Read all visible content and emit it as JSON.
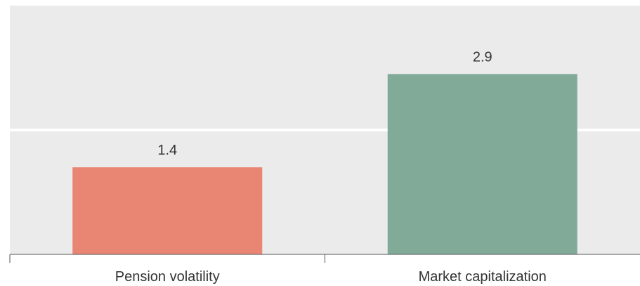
{
  "chart_data": {
    "type": "bar",
    "categories": [
      "Pension volatility",
      "Market capitalization"
    ],
    "values": [
      1.4,
      2.9
    ],
    "data_labels": [
      "1.4",
      "2.9"
    ],
    "colors": [
      "#e98673",
      "#81ab98"
    ],
    "background_color": "#ebebeb",
    "grid_color": "#ffffff",
    "axis_color": "#555555",
    "ylim": [
      0,
      4
    ],
    "grid": true,
    "title": "",
    "xlabel": "",
    "ylabel": ""
  }
}
